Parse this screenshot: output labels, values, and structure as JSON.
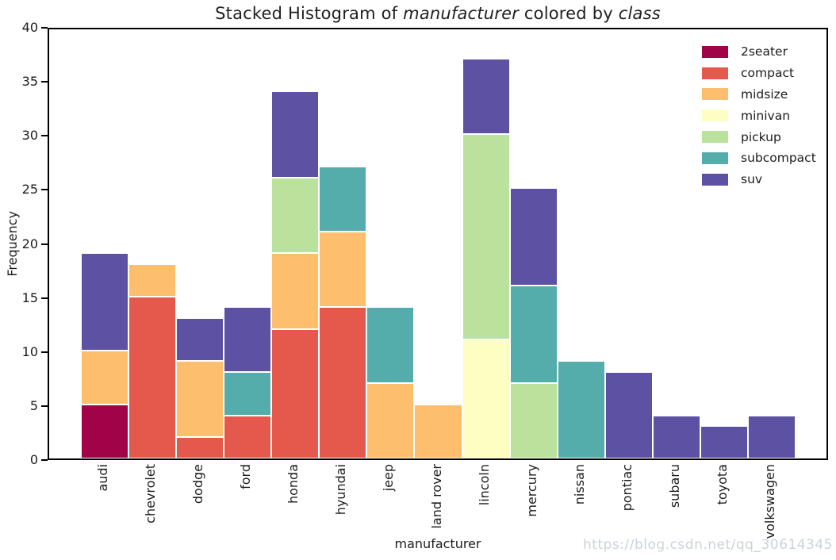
{
  "title": {
    "prefix": "Stacked Histogram of ",
    "var1": "manufacturer",
    "middle": " colored by ",
    "var2": "class"
  },
  "watermark": "https://blog.csdn.net/qq_30614345",
  "chart_data": {
    "type": "bar",
    "stacked": true,
    "title": "Stacked Histogram of manufacturer colored by class",
    "xlabel": "manufacturer",
    "ylabel": "Frequency",
    "ylim": [
      0,
      40
    ],
    "yticks": [
      0,
      5,
      10,
      15,
      20,
      25,
      30,
      35,
      40
    ],
    "grid": false,
    "legend_position": "upper right",
    "bar_edge_color": "#ffffff",
    "categories": [
      "audi",
      "chevrolet",
      "dodge",
      "ford",
      "honda",
      "hyundai",
      "jeep",
      "land rover",
      "lincoln",
      "mercury",
      "nissan",
      "pontiac",
      "subaru",
      "toyota",
      "volkswagen"
    ],
    "series": [
      {
        "name": "2seater",
        "color": "#a10348",
        "values": [
          5,
          0,
          0,
          0,
          0,
          0,
          0,
          0,
          0,
          0,
          0,
          0,
          0,
          0,
          0
        ]
      },
      {
        "name": "compact",
        "color": "#e4594b",
        "values": [
          0,
          15,
          2,
          4,
          12,
          14,
          0,
          0,
          0,
          0,
          0,
          0,
          0,
          0,
          0
        ]
      },
      {
        "name": "midsize",
        "color": "#fdbe6e",
        "values": [
          5,
          3,
          7,
          0,
          7,
          7,
          7,
          5,
          0,
          0,
          0,
          0,
          0,
          0,
          0
        ]
      },
      {
        "name": "minivan",
        "color": "#fdffc2",
        "values": [
          0,
          0,
          0,
          0,
          0,
          0,
          0,
          0,
          11,
          0,
          0,
          0,
          0,
          0,
          0
        ]
      },
      {
        "name": "pickup",
        "color": "#bae29d",
        "values": [
          0,
          0,
          0,
          0,
          7,
          0,
          0,
          0,
          19,
          7,
          0,
          0,
          0,
          0,
          0
        ]
      },
      {
        "name": "subcompact",
        "color": "#54acab",
        "values": [
          0,
          0,
          0,
          4,
          0,
          6,
          7,
          0,
          0,
          9,
          9,
          0,
          0,
          0,
          0
        ]
      },
      {
        "name": "suv",
        "color": "#5c51a3",
        "values": [
          9,
          0,
          4,
          6,
          8,
          0,
          0,
          0,
          7,
          9,
          0,
          8,
          4,
          3,
          4
        ]
      }
    ],
    "bin_totals": [
      19,
      18,
      13,
      14,
      34,
      27,
      14,
      5,
      37,
      25,
      9,
      8,
      4,
      3,
      4
    ]
  }
}
